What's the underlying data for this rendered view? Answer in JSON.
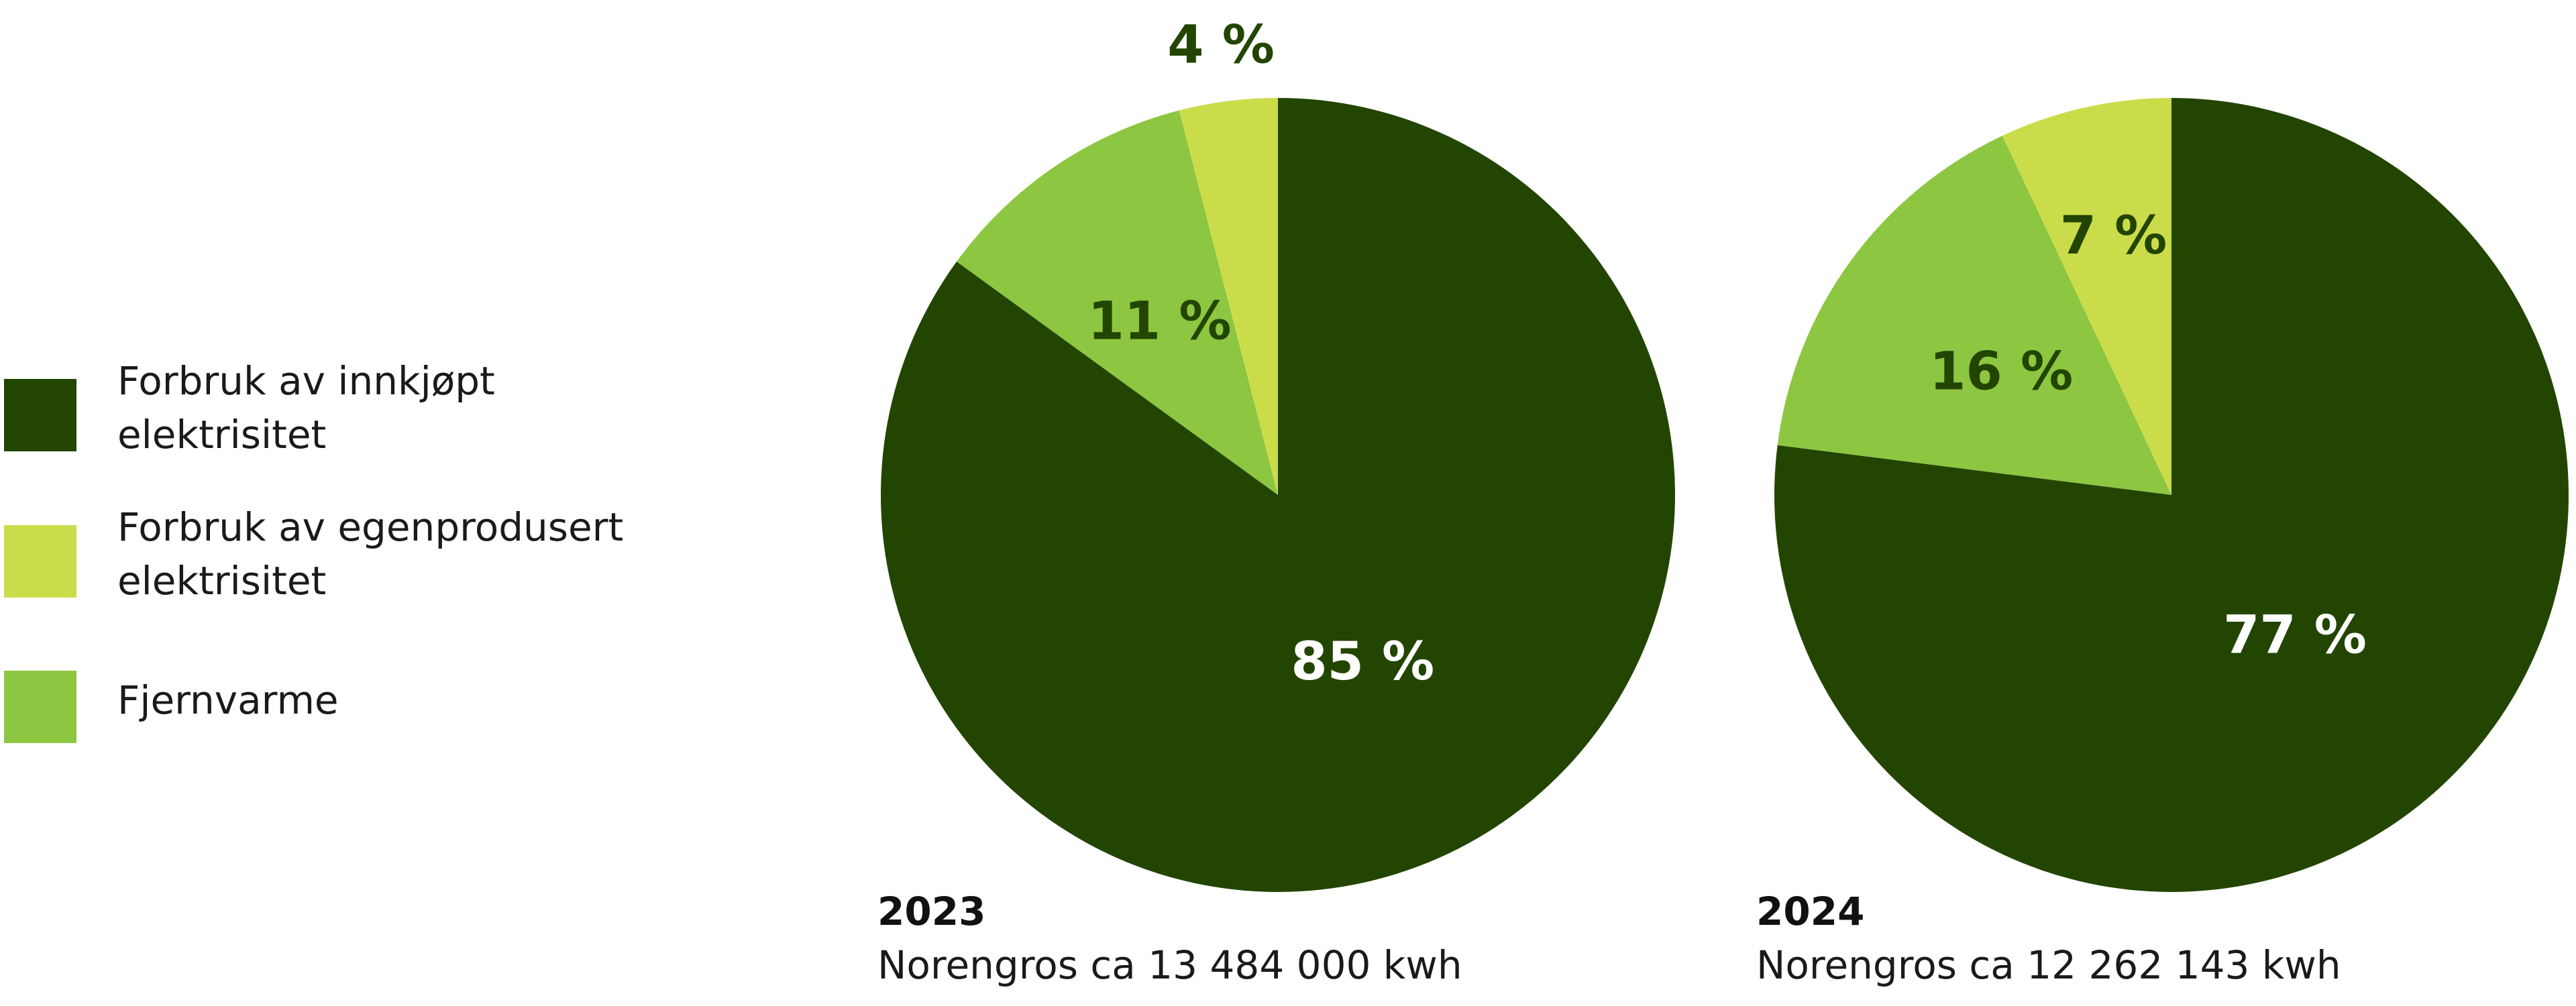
{
  "colors": {
    "purchased": "#234502",
    "self_produced": "#cbdc4b",
    "district_heating": "#8dc641",
    "label_dark": "#234502",
    "label_light": "#ffffff"
  },
  "legend": [
    {
      "key": "purchased",
      "lines": [
        "Forbruk av innkjøpt",
        "elektrisitet"
      ]
    },
    {
      "key": "self_produced",
      "lines": [
        "Forbruk av egenprodusert",
        "elektrisitet"
      ]
    },
    {
      "key": "district_heating",
      "lines": [
        "Fjernvarme"
      ]
    }
  ],
  "chart_data": [
    {
      "type": "pie",
      "year": "2023",
      "caption": "Norengros ca 13 484 000 kwh",
      "slices": [
        {
          "key": "purchased",
          "label": "Forbruk av innkjøpt elektrisitet",
          "value": 85,
          "text": "85 %"
        },
        {
          "key": "district_heating",
          "label": "Fjernvarme",
          "value": 11,
          "text": "11 %"
        },
        {
          "key": "self_produced",
          "label": "Forbruk av egenprodusert elektrisitet",
          "value": 4,
          "text": "4 %"
        }
      ]
    },
    {
      "type": "pie",
      "year": "2024",
      "caption": "Norengros ca 12 262 143 kwh",
      "slices": [
        {
          "key": "purchased",
          "label": "Forbruk av innkjøpt elektrisitet",
          "value": 77,
          "text": "77 %"
        },
        {
          "key": "district_heating",
          "label": "Fjernvarme",
          "value": 16,
          "text": "16 %"
        },
        {
          "key": "self_produced",
          "label": "Forbruk av egenprodusert elektrisitet",
          "value": 7,
          "text": "7 %"
        }
      ]
    }
  ]
}
